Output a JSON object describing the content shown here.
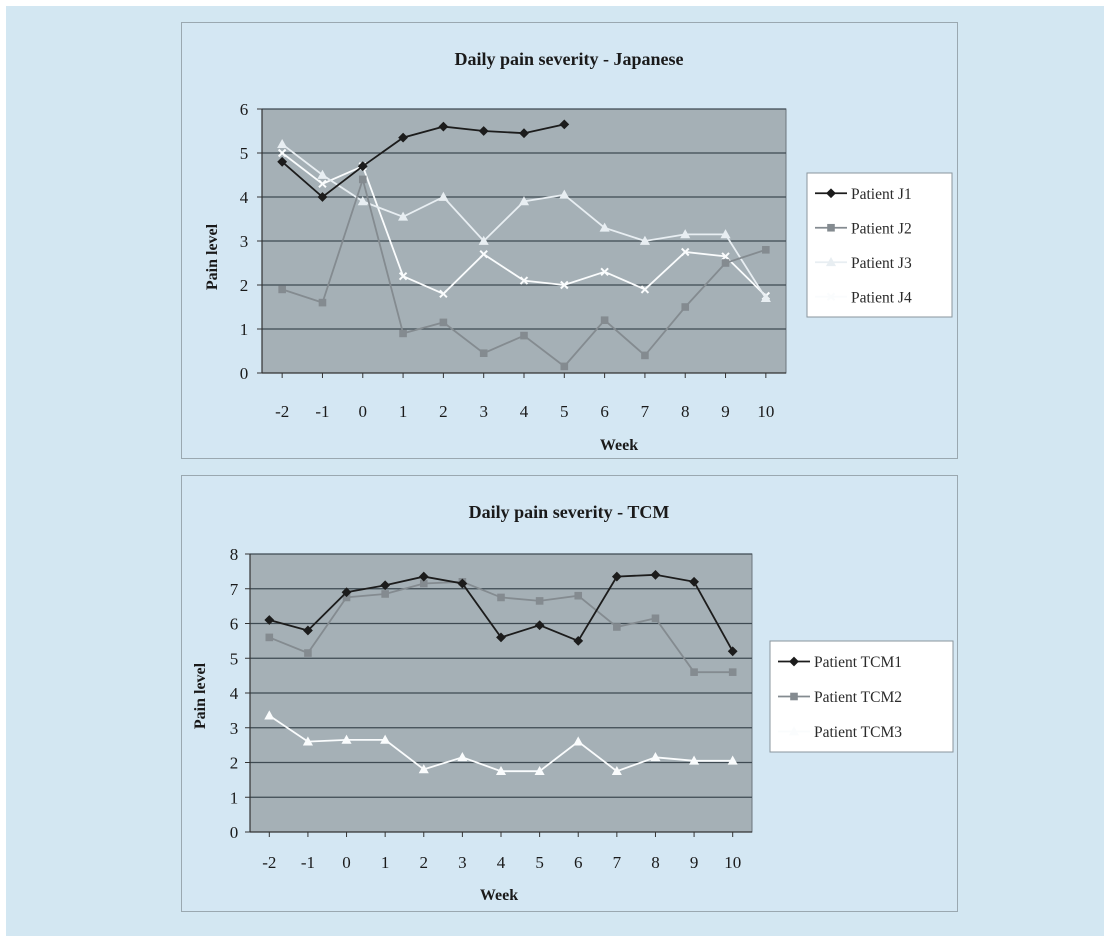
{
  "charts": [
    {
      "title": "Daily pain severity - Japanese",
      "xlabel": "Week",
      "ylabel": "Pain level"
    },
    {
      "title": "Daily pain severity - TCM",
      "xlabel": "Week",
      "ylabel": "Pain level"
    }
  ],
  "colors": {
    "background": "#d3e7f2",
    "plot_area": "#a5b0b6",
    "gridline": "#3e4a52",
    "series_dark": "#1c1c1c",
    "series_gray": "#848b90",
    "series_light": "#e8eef2",
    "series_white": "#fafcfd"
  },
  "chart_data": [
    {
      "type": "line",
      "title": "Daily pain severity - Japanese",
      "xlabel": "Week",
      "ylabel": "Pain level",
      "categories": [
        "-2",
        "-1",
        "0",
        "1",
        "2",
        "3",
        "4",
        "5",
        "6",
        "7",
        "8",
        "9",
        "10"
      ],
      "ylim": [
        0,
        6
      ],
      "yticks": [
        0,
        1,
        2,
        3,
        4,
        5,
        6
      ],
      "grid": true,
      "legend_position": "right",
      "series": [
        {
          "name": "Patient J1",
          "color": "#1c1c1c",
          "marker": "diamond",
          "values": [
            4.8,
            4.0,
            4.7,
            5.35,
            5.6,
            5.5,
            5.45,
            5.65,
            null,
            null,
            null,
            null,
            null
          ]
        },
        {
          "name": "Patient J2",
          "color": "#848b90",
          "marker": "square",
          "values": [
            1.9,
            1.6,
            4.4,
            0.9,
            1.15,
            0.45,
            0.85,
            0.15,
            1.2,
            0.4,
            1.5,
            2.5,
            2.8
          ]
        },
        {
          "name": "Patient J3",
          "color": "#e8eef2",
          "marker": "triangle",
          "values": [
            5.2,
            4.5,
            3.9,
            3.55,
            4.0,
            3.0,
            3.9,
            4.05,
            3.3,
            3.0,
            3.15,
            3.15,
            1.7
          ]
        },
        {
          "name": "Patient J4",
          "color": "#fafcfd",
          "marker": "x",
          "values": [
            5.0,
            4.3,
            4.7,
            2.2,
            1.8,
            2.7,
            2.1,
            2.0,
            2.3,
            1.9,
            2.75,
            2.65,
            1.75
          ]
        }
      ]
    },
    {
      "type": "line",
      "title": "Daily pain severity - TCM",
      "xlabel": "Week",
      "ylabel": "Pain level",
      "categories": [
        "-2",
        "-1",
        "0",
        "1",
        "2",
        "3",
        "4",
        "5",
        "6",
        "7",
        "8",
        "9",
        "10"
      ],
      "ylim": [
        0,
        8
      ],
      "yticks": [
        0,
        1,
        2,
        3,
        4,
        5,
        6,
        7,
        8
      ],
      "grid": true,
      "legend_position": "right",
      "series": [
        {
          "name": "Patient TCM1",
          "color": "#1c1c1c",
          "marker": "diamond",
          "values": [
            6.1,
            5.8,
            6.9,
            7.1,
            7.35,
            7.15,
            5.6,
            5.95,
            5.5,
            7.35,
            7.4,
            7.2,
            5.2
          ]
        },
        {
          "name": "Patient TCM2",
          "color": "#848b90",
          "marker": "square",
          "values": [
            5.6,
            5.15,
            6.75,
            6.85,
            7.15,
            7.2,
            6.75,
            6.65,
            6.8,
            5.9,
            6.15,
            4.6,
            4.6
          ]
        },
        {
          "name": "Patient TCM3",
          "color": "#fafcfd",
          "marker": "triangle",
          "values": [
            3.35,
            2.6,
            2.65,
            2.65,
            1.8,
            2.15,
            1.75,
            1.75,
            2.6,
            1.75,
            2.15,
            2.05,
            2.05
          ]
        }
      ]
    }
  ]
}
